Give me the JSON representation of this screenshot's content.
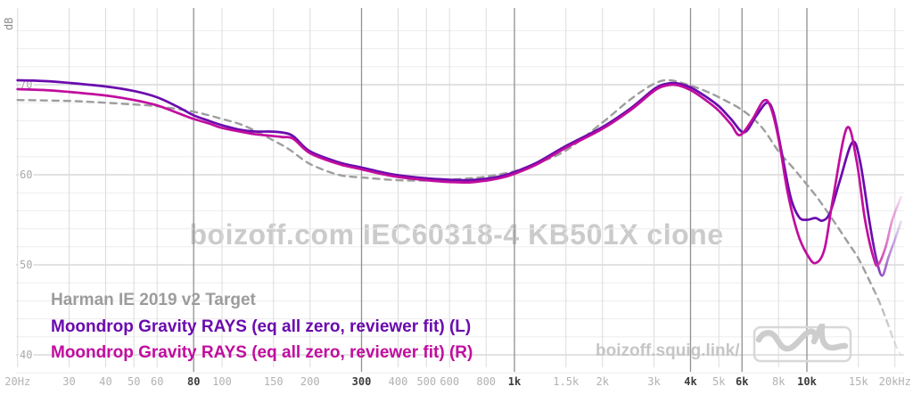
{
  "chart_data": {
    "type": "line",
    "title_watermark": "boizoff.com IEC60318-4 KB501X clone",
    "ylabel": "dB",
    "grid": true,
    "legend_position": "bottom-left",
    "x_axis": {
      "scale": "log",
      "min_hz": 20,
      "max_hz": 20000,
      "ticks": [
        {
          "f": 20,
          "label": "20Hz",
          "bold": false
        },
        {
          "f": 30,
          "label": "30",
          "bold": false
        },
        {
          "f": 40,
          "label": "40",
          "bold": false
        },
        {
          "f": 50,
          "label": "50",
          "bold": false
        },
        {
          "f": 60,
          "label": "60",
          "bold": false
        },
        {
          "f": 80,
          "label": "80",
          "bold": true
        },
        {
          "f": 100,
          "label": "100",
          "bold": false
        },
        {
          "f": 150,
          "label": "150",
          "bold": false
        },
        {
          "f": 200,
          "label": "200",
          "bold": false
        },
        {
          "f": 300,
          "label": "300",
          "bold": true
        },
        {
          "f": 400,
          "label": "400",
          "bold": false
        },
        {
          "f": 500,
          "label": "500",
          "bold": false
        },
        {
          "f": 600,
          "label": "600",
          "bold": false
        },
        {
          "f": 800,
          "label": "800",
          "bold": false
        },
        {
          "f": 1000,
          "label": "1k",
          "bold": true
        },
        {
          "f": 1500,
          "label": "1.5k",
          "bold": false
        },
        {
          "f": 2000,
          "label": "2k",
          "bold": false
        },
        {
          "f": 3000,
          "label": "3k",
          "bold": false
        },
        {
          "f": 4000,
          "label": "4k",
          "bold": true
        },
        {
          "f": 5000,
          "label": "5k",
          "bold": false
        },
        {
          "f": 6000,
          "label": "6k",
          "bold": true
        },
        {
          "f": 8000,
          "label": "8k",
          "bold": false
        },
        {
          "f": 10000,
          "label": "10k",
          "bold": true
        },
        {
          "f": 15000,
          "label": "15k",
          "bold": false
        },
        {
          "f": 20000,
          "label": "20kHz",
          "bold": false
        }
      ]
    },
    "y_axis": {
      "unit": "dB",
      "min_db": 38,
      "max_db": 76,
      "minor_step_db": 2,
      "major_ticks": [
        70,
        60,
        50,
        40
      ]
    },
    "series": [
      {
        "name": "Harman IE 2019 v2 Target",
        "color": "#9e9e9e",
        "style": "dashed",
        "points": [
          [
            20,
            68.3
          ],
          [
            30,
            68.2
          ],
          [
            40,
            68.0
          ],
          [
            50,
            67.8
          ],
          [
            60,
            67.6
          ],
          [
            80,
            67.0
          ],
          [
            100,
            66.2
          ],
          [
            120,
            65.4
          ],
          [
            150,
            63.8
          ],
          [
            170,
            62.8
          ],
          [
            200,
            61.2
          ],
          [
            250,
            60.0
          ],
          [
            300,
            59.7
          ],
          [
            400,
            59.4
          ],
          [
            500,
            59.35
          ],
          [
            600,
            59.45
          ],
          [
            700,
            59.6
          ],
          [
            800,
            59.8
          ],
          [
            1000,
            60.4
          ],
          [
            1200,
            61.3
          ],
          [
            1500,
            62.7
          ],
          [
            2000,
            65.8
          ],
          [
            2500,
            68.4
          ],
          [
            3000,
            70.1
          ],
          [
            3400,
            70.5
          ],
          [
            4000,
            69.9
          ],
          [
            4500,
            69.3
          ],
          [
            5000,
            68.6
          ],
          [
            6000,
            67.2
          ],
          [
            7000,
            65.3
          ],
          [
            8000,
            62.6
          ],
          [
            9000,
            60.7
          ],
          [
            10000,
            58.9
          ],
          [
            11000,
            57.2
          ],
          [
            12500,
            54.6
          ],
          [
            14000,
            52.2
          ],
          [
            15000,
            50.7
          ],
          [
            16500,
            48.0
          ],
          [
            18000,
            45.3
          ],
          [
            20000,
            41.3
          ],
          [
            21000,
            40.0
          ]
        ]
      },
      {
        "name": "Moondrop Gravity RAYS (eq all zero, reviewer fit) (L)",
        "color": "#6a0bad",
        "style": "solid",
        "points": [
          [
            20,
            70.5
          ],
          [
            25,
            70.4
          ],
          [
            30,
            70.2
          ],
          [
            40,
            69.8
          ],
          [
            50,
            69.3
          ],
          [
            60,
            68.6
          ],
          [
            70,
            67.6
          ],
          [
            80,
            66.6
          ],
          [
            90,
            66.0
          ],
          [
            100,
            65.5
          ],
          [
            115,
            65.0
          ],
          [
            130,
            64.8
          ],
          [
            145,
            64.8
          ],
          [
            160,
            64.7
          ],
          [
            175,
            64.3
          ],
          [
            200,
            62.6
          ],
          [
            250,
            61.4
          ],
          [
            300,
            60.8
          ],
          [
            350,
            60.3
          ],
          [
            400,
            59.95
          ],
          [
            500,
            59.6
          ],
          [
            600,
            59.45
          ],
          [
            700,
            59.4
          ],
          [
            800,
            59.55
          ],
          [
            900,
            59.85
          ],
          [
            1000,
            60.3
          ],
          [
            1200,
            61.4
          ],
          [
            1500,
            63.2
          ],
          [
            2000,
            65.3
          ],
          [
            2500,
            67.4
          ],
          [
            3000,
            69.5
          ],
          [
            3300,
            70.1
          ],
          [
            3600,
            70.15
          ],
          [
            4000,
            69.7
          ],
          [
            4500,
            68.7
          ],
          [
            5000,
            67.6
          ],
          [
            5500,
            66.2
          ],
          [
            6100,
            64.7
          ],
          [
            6700,
            66.5
          ],
          [
            7300,
            68.0
          ],
          [
            7700,
            66.8
          ],
          [
            8200,
            62.5
          ],
          [
            8800,
            57.5
          ],
          [
            9400,
            55.3
          ],
          [
            10000,
            55.0
          ],
          [
            10700,
            55.2
          ],
          [
            11300,
            54.9
          ],
          [
            12000,
            55.8
          ],
          [
            13000,
            59.5
          ],
          [
            14300,
            63.6
          ],
          [
            15200,
            61.5
          ],
          [
            16400,
            54.6
          ],
          [
            17300,
            50.6
          ],
          [
            18100,
            48.8
          ],
          [
            19000,
            50.8
          ],
          [
            20000,
            52.8
          ],
          [
            21000,
            54.8
          ]
        ]
      },
      {
        "name": "Moondrop Gravity RAYS (eq all zero, reviewer fit) (R)",
        "color": "#c10d9e",
        "style": "solid",
        "points": [
          [
            20,
            69.5
          ],
          [
            25,
            69.4
          ],
          [
            30,
            69.2
          ],
          [
            40,
            68.8
          ],
          [
            50,
            68.3
          ],
          [
            60,
            67.7
          ],
          [
            70,
            66.9
          ],
          [
            80,
            66.2
          ],
          [
            90,
            65.7
          ],
          [
            100,
            65.2
          ],
          [
            115,
            64.8
          ],
          [
            130,
            64.5
          ],
          [
            145,
            64.35
          ],
          [
            160,
            64.2
          ],
          [
            175,
            64.0
          ],
          [
            200,
            62.4
          ],
          [
            250,
            61.2
          ],
          [
            300,
            60.6
          ],
          [
            350,
            60.1
          ],
          [
            400,
            59.75
          ],
          [
            500,
            59.4
          ],
          [
            600,
            59.2
          ],
          [
            700,
            59.15
          ],
          [
            800,
            59.35
          ],
          [
            900,
            59.65
          ],
          [
            1000,
            60.1
          ],
          [
            1200,
            61.2
          ],
          [
            1500,
            63.0
          ],
          [
            2000,
            65.1
          ],
          [
            2500,
            67.2
          ],
          [
            3000,
            69.3
          ],
          [
            3300,
            69.9
          ],
          [
            3600,
            69.95
          ],
          [
            4000,
            69.4
          ],
          [
            4500,
            68.3
          ],
          [
            5000,
            67.1
          ],
          [
            5500,
            65.6
          ],
          [
            5900,
            64.4
          ],
          [
            6500,
            66.1
          ],
          [
            7100,
            68.2
          ],
          [
            7500,
            67.6
          ],
          [
            8000,
            64.0
          ],
          [
            8600,
            58.0
          ],
          [
            9300,
            53.5
          ],
          [
            10000,
            51.2
          ],
          [
            10700,
            50.2
          ],
          [
            11500,
            51.8
          ],
          [
            12300,
            57.5
          ],
          [
            13700,
            65.2
          ],
          [
            14800,
            61.5
          ],
          [
            15800,
            55.0
          ],
          [
            17000,
            50.5
          ],
          [
            17600,
            50.1
          ],
          [
            18600,
            52.0
          ],
          [
            19600,
            55.0
          ],
          [
            21000,
            57.5
          ]
        ]
      }
    ]
  },
  "branding": {
    "site_url": "boizoff.squig.link/",
    "logo_icon": "squiggle-wave-logo"
  },
  "colors": {
    "grid_minor_horizontal": "#ededed",
    "grid_major_horizontal": "#d9d9d9",
    "grid_minor_vertical": "#dcdcdc",
    "grid_major_vertical": "#909090",
    "watermark": "#cbcbcb",
    "brand_text": "#c6c6c6",
    "legend_target": "#9c9c9c",
    "curve_left": "#6a0bad",
    "curve_right": "#c10d9e"
  }
}
